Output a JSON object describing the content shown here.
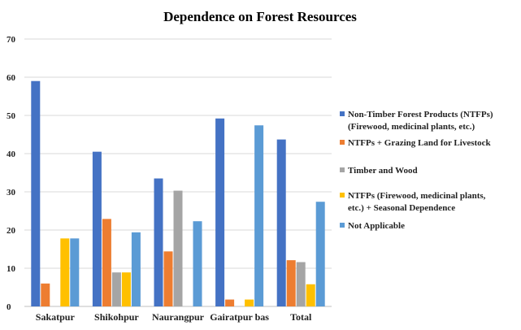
{
  "chart_data": {
    "type": "bar",
    "title": "Dependence on Forest Resources",
    "xlabel": "",
    "ylabel": "",
    "categories": [
      "Sakatpur",
      "Shikohpur",
      "Naurangpur",
      "Gairatpur bas",
      "Total"
    ],
    "ylim": [
      0,
      70
    ],
    "yticks": [
      0,
      10,
      20,
      30,
      40,
      50,
      60,
      70
    ],
    "grid": true,
    "legend_position": "right",
    "series": [
      {
        "name": "Non-Timber Forest Products (NTFPs) (Firewood, medicinal plants, etc.)",
        "legend_lines": [
          "Non-Timber Forest Products (NTFPs)",
          "(Firewood, medicinal plants, etc.)"
        ],
        "color": "#4472C4",
        "values": [
          59,
          40.5,
          33.5,
          49.2,
          43.7
        ]
      },
      {
        "name": "NTFPs + Grazing Land for Livestock",
        "legend_lines": [
          "NTFPs + Grazing Land for Livestock"
        ],
        "color": "#ED7D31",
        "values": [
          6,
          22.9,
          14.4,
          1.8,
          12.1
        ]
      },
      {
        "name": "Timber and Wood",
        "legend_lines": [
          "Timber and Wood"
        ],
        "color": "#A5A5A5",
        "values": [
          0,
          8.9,
          30.3,
          0,
          11.6
        ]
      },
      {
        "name": "NTFPs (Firewood, medicinal plants, etc.) + Seasonal Dependence",
        "legend_lines": [
          "NTFPs (Firewood, medicinal plants,",
          "etc.) + Seasonal Dependence"
        ],
        "color": "#FFC000",
        "values": [
          17.8,
          8.9,
          0,
          1.8,
          5.8
        ]
      },
      {
        "name": "Not Applicable",
        "legend_lines": [
          "Not Applicable"
        ],
        "color": "#5B9BD5",
        "values": [
          17.8,
          19.4,
          22.3,
          47.4,
          27.4
        ]
      }
    ]
  }
}
